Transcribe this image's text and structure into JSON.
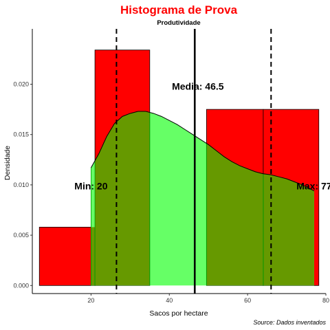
{
  "chart_data": {
    "type": "histogram",
    "title": "Histograma de Prova",
    "subtitle": "Produtividade",
    "xlabel": "Sacos por hectare",
    "ylabel": "Densidade",
    "caption": "Source: Dados inventados",
    "xlim": [
      5,
      80
    ],
    "ylim": [
      -0.0008,
      0.0255
    ],
    "x_ticks": [
      20,
      40,
      60,
      80
    ],
    "y_ticks": [
      0.0,
      0.005,
      0.01,
      0.015,
      0.02
    ],
    "y_tick_labels": [
      "0.000",
      "0.005",
      "0.010",
      "0.015",
      "0.020"
    ],
    "grid": false,
    "bins": [
      {
        "x0": 6.8,
        "x1": 21.0,
        "density": 0.0058
      },
      {
        "x0": 21.0,
        "x1": 35.0,
        "density": 0.0234
      },
      {
        "x0": 35.0,
        "x1": 49.5,
        "density": 0.0
      },
      {
        "x0": 49.5,
        "x1": 64.0,
        "density": 0.0175
      },
      {
        "x0": 64.0,
        "x1": 78.2,
        "density": 0.0175
      }
    ],
    "density_curve": {
      "x": [
        20,
        22,
        24,
        26,
        28,
        30,
        32,
        34,
        36,
        38,
        40,
        42,
        44,
        46,
        48,
        50,
        52,
        54,
        56,
        58,
        60,
        62,
        64,
        66,
        68,
        70,
        72,
        74,
        76,
        77
      ],
      "y": [
        0.0117,
        0.0131,
        0.0148,
        0.0161,
        0.0168,
        0.0171,
        0.0173,
        0.0173,
        0.0171,
        0.0168,
        0.0164,
        0.016,
        0.0155,
        0.015,
        0.0145,
        0.014,
        0.0134,
        0.0128,
        0.0123,
        0.0119,
        0.0116,
        0.0113,
        0.0111,
        0.011,
        0.0108,
        0.0106,
        0.0103,
        0.01,
        0.0096,
        0.0094
      ]
    },
    "vlines": [
      {
        "x": 26.5,
        "style": "dashed"
      },
      {
        "x": 46.5,
        "style": "solid"
      },
      {
        "x": 66.0,
        "style": "dashed"
      }
    ],
    "annotations": [
      {
        "text": "Media: 46.5",
        "x": 47.3,
        "y": 0.0197
      },
      {
        "text": "Min: 20",
        "x": 20.0,
        "y": 0.0098
      },
      {
        "text": "Max: 77",
        "x": 77.0,
        "y": 0.0098
      }
    ],
    "colors": {
      "bar_fill": "#ff0000",
      "bar_stroke": "#000000",
      "density_fill": "#66ff66",
      "overlap_fill": "#669900",
      "overlap_stroke": "#009900",
      "curve_stroke": "#000000",
      "title": "#ff0000"
    }
  }
}
